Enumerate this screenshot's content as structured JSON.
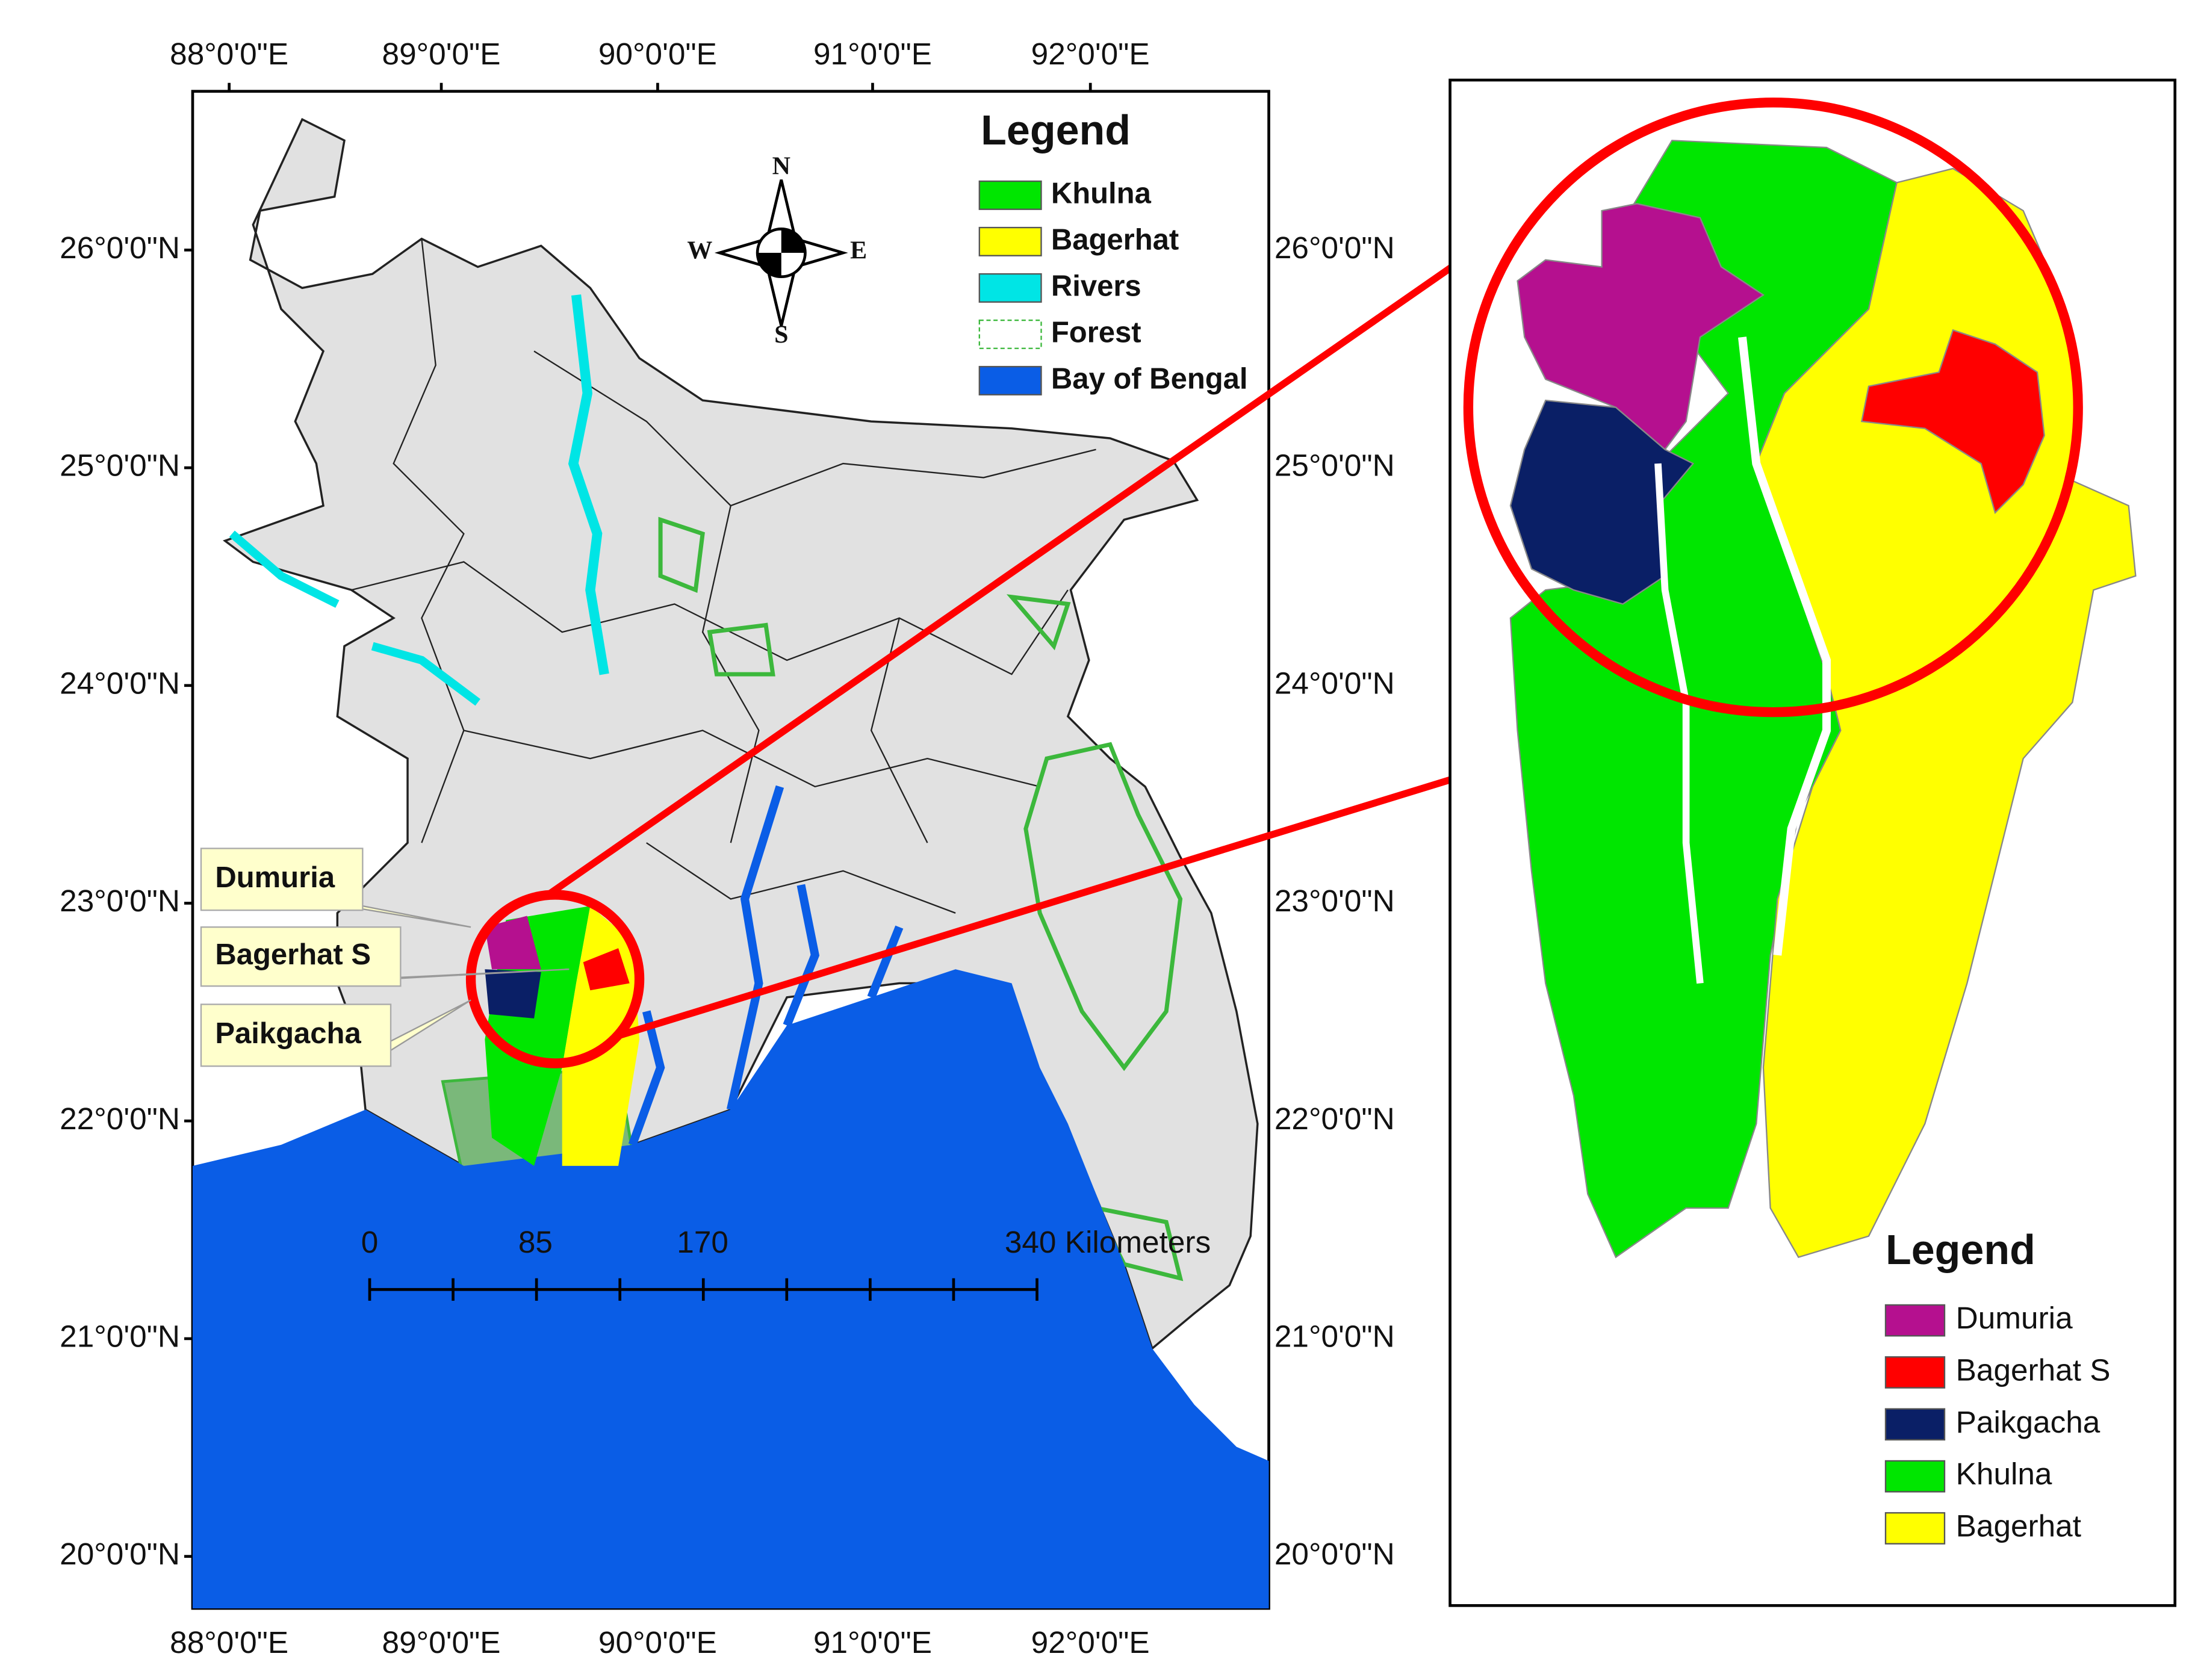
{
  "main_map": {
    "lon_ticks": [
      "88°0'0\"E",
      "89°0'0\"E",
      "90°0'0\"E",
      "91°0'0\"E",
      "92°0'0\"E"
    ],
    "lat_ticks": [
      "26°0'0\"N",
      "25°0'0\"N",
      "24°0'0\"N",
      "23°0'0\"N",
      "22°0'0\"N",
      "21°0'0\"N",
      "20°0'0\"N"
    ],
    "legend": {
      "title": "Legend",
      "items": [
        {
          "label": "Khulna",
          "color": "#00e600"
        },
        {
          "label": "Bagerhat",
          "color": "#ffff00"
        },
        {
          "label": "Rivers",
          "color": "#00e5e5"
        },
        {
          "label": "Forest",
          "color": "#ffffff"
        },
        {
          "label": "Bay of Bengal",
          "color": "#0a5de6"
        }
      ]
    },
    "compass": {
      "n": "N",
      "s": "S",
      "e": "E",
      "w": "W"
    },
    "callouts": [
      "Dumuria",
      "Bagerhat S",
      "Paikgacha"
    ],
    "scale_bar": [
      "0",
      "85",
      "170",
      "340 Kilometers"
    ]
  },
  "inset_map": {
    "legend": {
      "title": "Legend",
      "items": [
        {
          "label": "Dumuria",
          "color": "#b5108f"
        },
        {
          "label": "Bagerhat S",
          "color": "#ff0000"
        },
        {
          "label": "Paikgacha",
          "color": "#0a1f66"
        },
        {
          "label": "Khulna",
          "color": "#00e600"
        },
        {
          "label": "Bagerhat",
          "color": "#ffff00"
        }
      ]
    }
  }
}
